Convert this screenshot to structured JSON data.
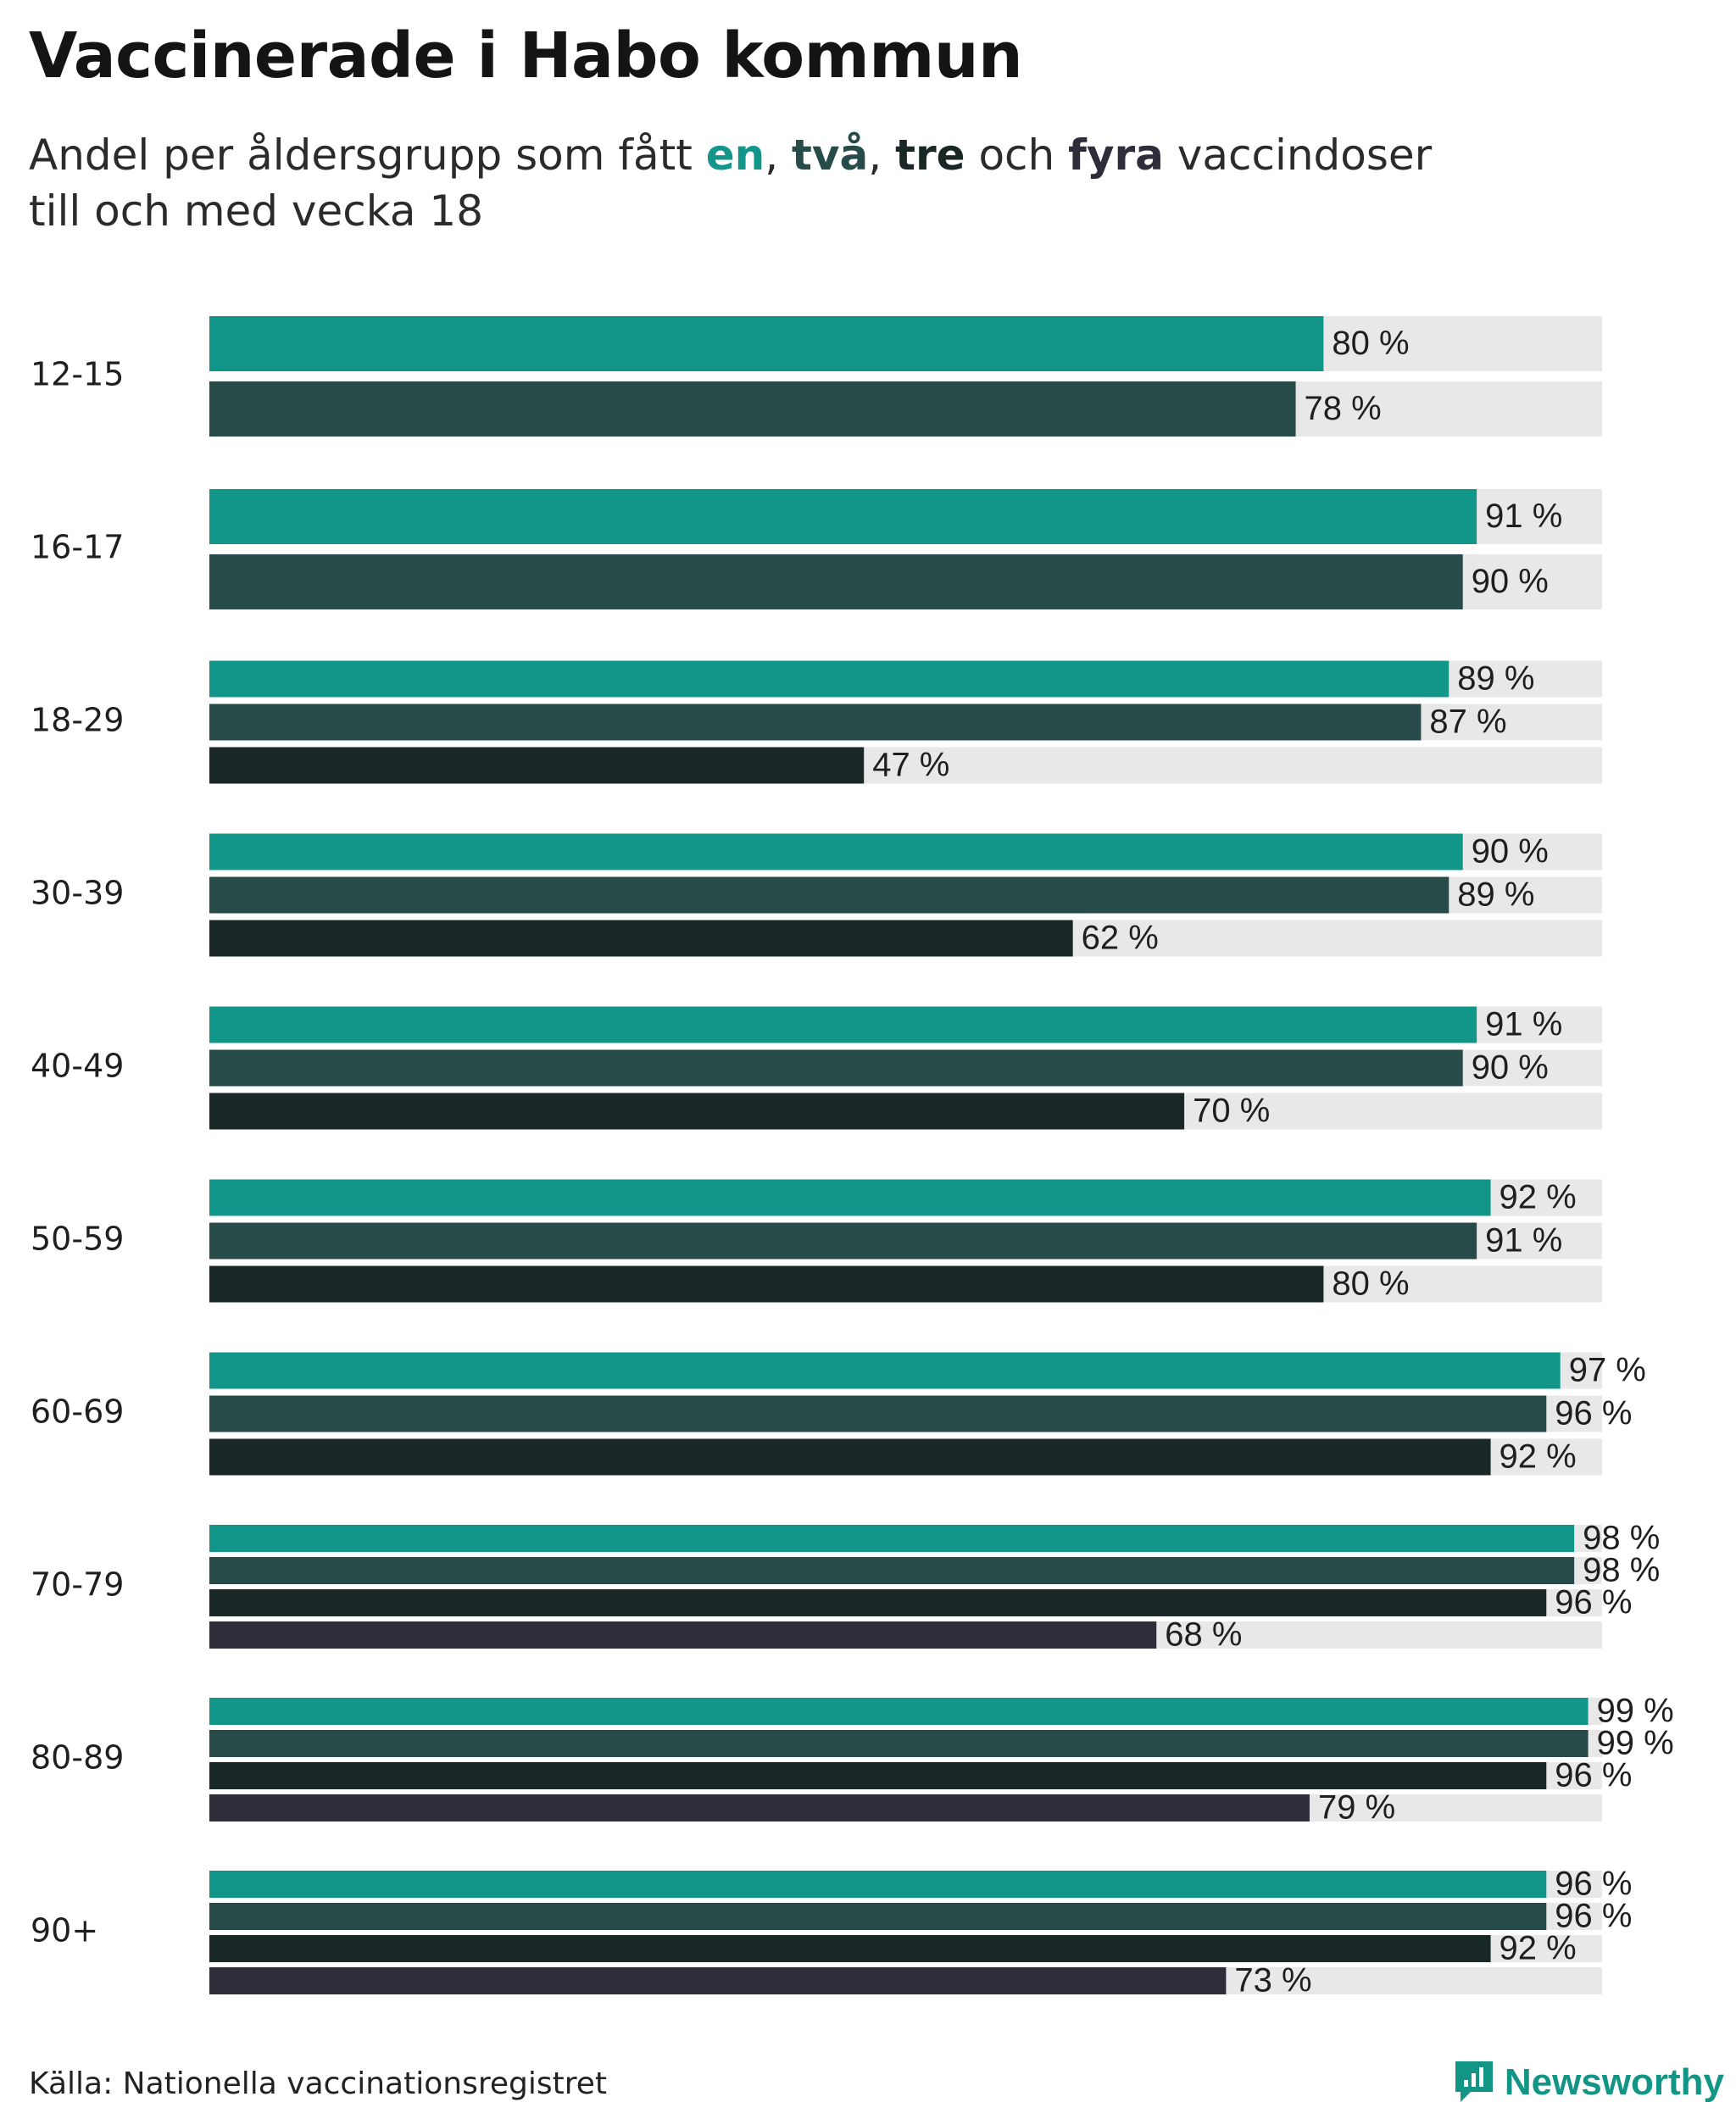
{
  "title": "Vaccinerade i Habo kommun",
  "subtitle": {
    "prefix": "Andel per åldersgrupp som fått ",
    "doses": [
      "en",
      "två",
      "tre",
      "fyra"
    ],
    "sep1": ", ",
    "sep2": ", ",
    "conj": " och ",
    "suffix_line1": " vaccindoser",
    "line2": "till och med vecka 18"
  },
  "colors": {
    "dose1": "#12968a",
    "dose2": "#264b48",
    "dose3": "#192827",
    "dose4": "#2f2d3a",
    "track": "#e8e8e8",
    "brand": "#139585"
  },
  "chart_data": {
    "type": "bar",
    "orientation": "horizontal",
    "title": "Vaccinerade i Habo kommun",
    "xlabel": "",
    "ylabel": "",
    "xlim": [
      0,
      100
    ],
    "value_suffix": " %",
    "series_names": [
      "en",
      "två",
      "tre",
      "fyra"
    ],
    "groups": [
      {
        "label": "12-15",
        "values": [
          80,
          78
        ]
      },
      {
        "label": "16-17",
        "values": [
          91,
          90
        ]
      },
      {
        "label": "18-29",
        "values": [
          89,
          87,
          47
        ]
      },
      {
        "label": "30-39",
        "values": [
          90,
          89,
          62
        ]
      },
      {
        "label": "40-49",
        "values": [
          91,
          90,
          70
        ]
      },
      {
        "label": "50-59",
        "values": [
          92,
          91,
          80
        ]
      },
      {
        "label": "60-69",
        "values": [
          97,
          96,
          92
        ]
      },
      {
        "label": "70-79",
        "values": [
          98,
          98,
          96,
          68
        ]
      },
      {
        "label": "80-89",
        "values": [
          99,
          99,
          96,
          79
        ]
      },
      {
        "label": "90+",
        "values": [
          96,
          96,
          92,
          73
        ]
      }
    ]
  },
  "source": "Källa: Nationella vaccinationsregistret",
  "brand": {
    "name": "Newsworthy",
    "icon": "newsworthy-logo-icon"
  }
}
